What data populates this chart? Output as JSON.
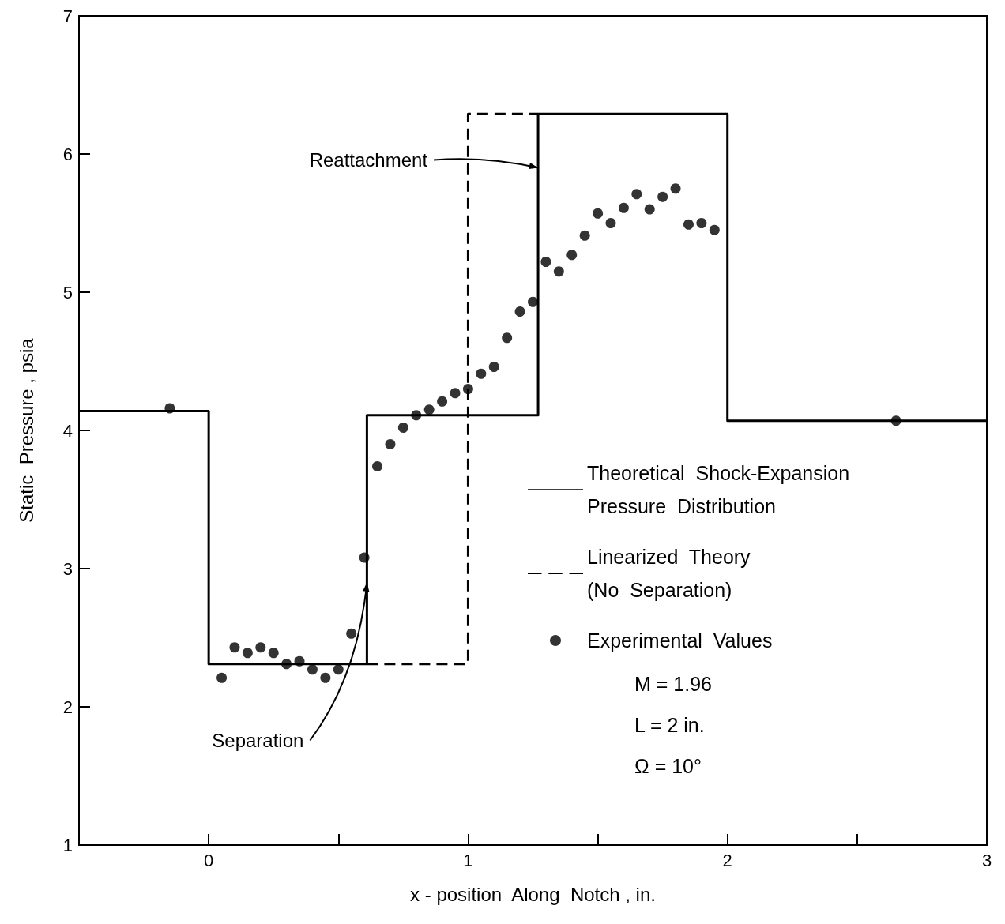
{
  "chart_data": {
    "type": "scatter",
    "xlabel": "x - position  Along  Notch , in.",
    "ylabel": "Static  Pressure , psia",
    "xlim": [
      -0.5,
      3
    ],
    "xticks": [
      {
        "value": -0.5,
        "label": null
      },
      0,
      {
        "value": 0.5,
        "label": null
      },
      1,
      {
        "value": 1.5,
        "label": null
      },
      2,
      {
        "value": 2.5,
        "label": null
      },
      3
    ],
    "ylim": [
      1,
      7
    ],
    "yticks": [
      1,
      2,
      3,
      4,
      5,
      6,
      7
    ],
    "grid": false,
    "legend": "right",
    "marker": "circle",
    "series": [
      {
        "name": "Theoretical  Shock-Expansion\nPressure  Distribution",
        "type": "step",
        "color": "#000000",
        "line_style": "solid",
        "marker": "none",
        "x": [
          -0.5,
          0,
          0.61,
          1.27,
          2,
          3
        ],
        "values": [
          4.14,
          2.31,
          4.11,
          6.29,
          4.07,
          4.07
        ]
      },
      {
        "name": "Linearized  Theory\n(No  Separation)",
        "type": "step",
        "color": "#000000",
        "line_style": "dashed",
        "marker": "none",
        "x": [
          0.61,
          1,
          1.27
        ],
        "values": [
          2.31,
          6.29,
          6.29
        ]
      },
      {
        "name": "Experimental  Values",
        "color": "#000000",
        "x": [
          -0.15,
          0.05,
          0.1,
          0.15,
          0.2,
          0.25,
          0.3,
          0.35,
          0.4,
          0.45,
          0.5,
          0.55,
          0.6,
          0.65,
          0.7,
          0.75,
          0.8,
          0.85,
          0.9,
          0.95,
          1.0,
          1.05,
          1.1,
          1.15,
          1.2,
          1.25,
          1.3,
          1.35,
          1.4,
          1.45,
          1.5,
          1.55,
          1.6,
          1.65,
          1.7,
          1.75,
          1.8,
          1.85,
          1.9,
          1.95,
          2.65
        ],
        "values": [
          4.16,
          2.21,
          2.43,
          2.39,
          2.43,
          2.39,
          2.31,
          2.33,
          2.27,
          2.21,
          2.27,
          2.53,
          3.08,
          3.74,
          3.9,
          4.02,
          4.11,
          4.15,
          4.21,
          4.27,
          4.3,
          4.41,
          4.46,
          4.67,
          4.86,
          4.93,
          5.22,
          5.15,
          5.27,
          5.41,
          5.57,
          5.5,
          5.61,
          5.71,
          5.6,
          5.69,
          5.75,
          5.49,
          5.5,
          5.45,
          4.07
        ]
      }
    ],
    "annotations": [
      {
        "text": "Reattachment",
        "x": 1.27,
        "y": 5.9
      },
      {
        "text": "Separation",
        "x": 0.61,
        "y": 2.9
      },
      "M = 1.96",
      "L = 2 in.",
      "Ω = 10°"
    ]
  }
}
